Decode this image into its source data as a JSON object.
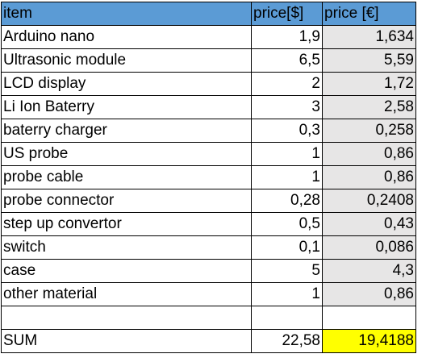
{
  "colors": {
    "header_bg": "#5b9bd5",
    "eur_bg": "#e7e6e6",
    "sum_highlight": "#ffff00"
  },
  "table": {
    "headers": [
      "item",
      "price[$]",
      "price [€]"
    ],
    "rows": [
      {
        "item": "Arduino nano",
        "usd": "1,9",
        "eur": "1,634"
      },
      {
        "item": "Ultrasonic module",
        "usd": "6,5",
        "eur": "5,59"
      },
      {
        "item": "LCD display",
        "usd": "2",
        "eur": "1,72"
      },
      {
        "item": "Li Ion Baterry",
        "usd": "3",
        "eur": "2,58"
      },
      {
        "item": "baterry charger",
        "usd": "0,3",
        "eur": "0,258"
      },
      {
        "item": "US probe",
        "usd": "1",
        "eur": "0,86"
      },
      {
        "item": "probe cable",
        "usd": "1",
        "eur": "0,86"
      },
      {
        "item": "probe connector",
        "usd": "0,28",
        "eur": "0,2408"
      },
      {
        "item": "step up convertor",
        "usd": "0,5",
        "eur": "0,43"
      },
      {
        "item": "switch",
        "usd": "0,1",
        "eur": "0,086"
      },
      {
        "item": "case",
        "usd": "5",
        "eur": "4,3"
      },
      {
        "item": "other material",
        "usd": "1",
        "eur": "0,86"
      }
    ],
    "sum": {
      "label": "SUM",
      "usd": "22,58",
      "eur": "19,4188"
    }
  }
}
